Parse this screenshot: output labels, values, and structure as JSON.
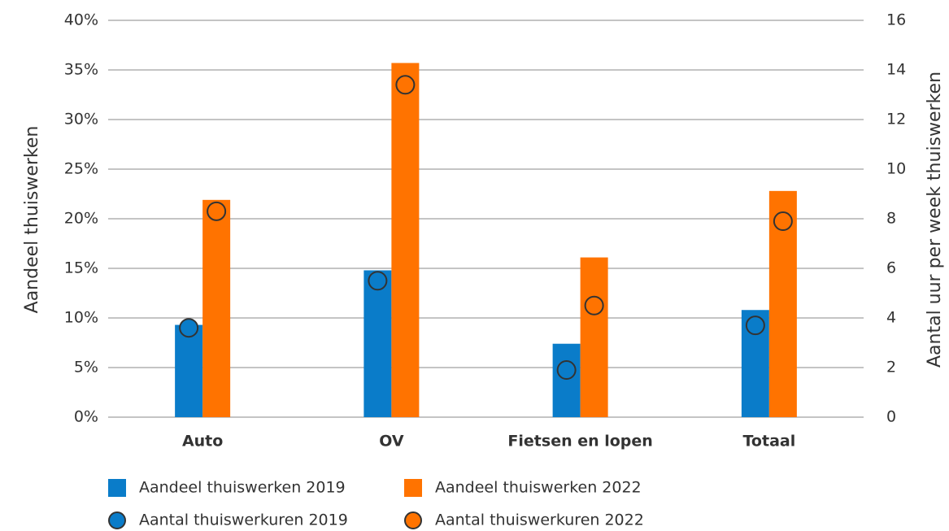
{
  "chart_data": {
    "type": "bar",
    "y_label": "Aandeel thuiswerken",
    "y2_label": "Aantal uur per week thuiswerken",
    "categories": [
      "Auto",
      "OV",
      "Fietsen en lopen",
      "Totaal"
    ],
    "series": [
      {
        "name": "Aandeel thuiswerken 2019",
        "type": "bar",
        "color": "#0a7cc9",
        "values": [
          9.3,
          14.8,
          7.4,
          10.8
        ]
      },
      {
        "name": "Aandeel thuiswerken 2022",
        "type": "bar",
        "color": "#ff7300",
        "values": [
          21.9,
          35.7,
          16.1,
          22.8
        ]
      },
      {
        "name": "Aantal thuiswerkuren 2019",
        "type": "scatter",
        "axis": "y2",
        "color": "#0a7cc9",
        "values": [
          3.6,
          5.5,
          1.9,
          3.7
        ]
      },
      {
        "name": "Aantal thuiswerkuren 2022",
        "type": "scatter",
        "axis": "y2",
        "color": "#ff7300",
        "values": [
          8.3,
          13.4,
          4.5,
          7.9
        ]
      }
    ],
    "ylim": [
      0,
      40
    ],
    "yticks": [
      {
        "value": 0,
        "label": "0%"
      },
      {
        "value": 5,
        "label": "5%"
      },
      {
        "value": 10,
        "label": "10%"
      },
      {
        "value": 15,
        "label": "15%"
      },
      {
        "value": 20,
        "label": "20%"
      },
      {
        "value": 25,
        "label": "25%"
      },
      {
        "value": 30,
        "label": "30%"
      },
      {
        "value": 35,
        "label": "35%"
      },
      {
        "value": 40,
        "label": "40%"
      }
    ],
    "y2lim": [
      0,
      16
    ],
    "y2ticks": [
      0,
      2,
      4,
      6,
      8,
      10,
      12,
      14,
      16
    ],
    "grid": true
  }
}
